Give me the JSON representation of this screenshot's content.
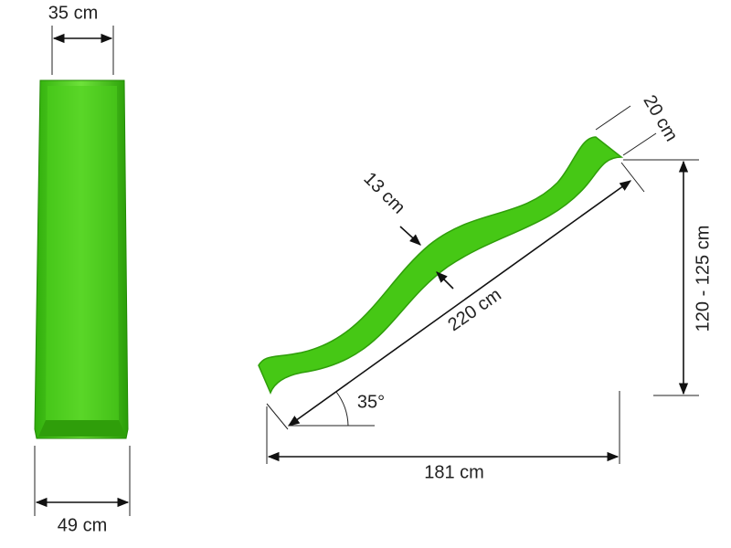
{
  "front_view": {
    "top_width": "35 cm",
    "bottom_width": "49 cm"
  },
  "side_view": {
    "lip_length": "20 cm",
    "rail_height": "13 cm",
    "slide_length": "220 cm",
    "angle": "35°",
    "height": "120 - 125 cm",
    "base_length": "181 cm"
  }
}
